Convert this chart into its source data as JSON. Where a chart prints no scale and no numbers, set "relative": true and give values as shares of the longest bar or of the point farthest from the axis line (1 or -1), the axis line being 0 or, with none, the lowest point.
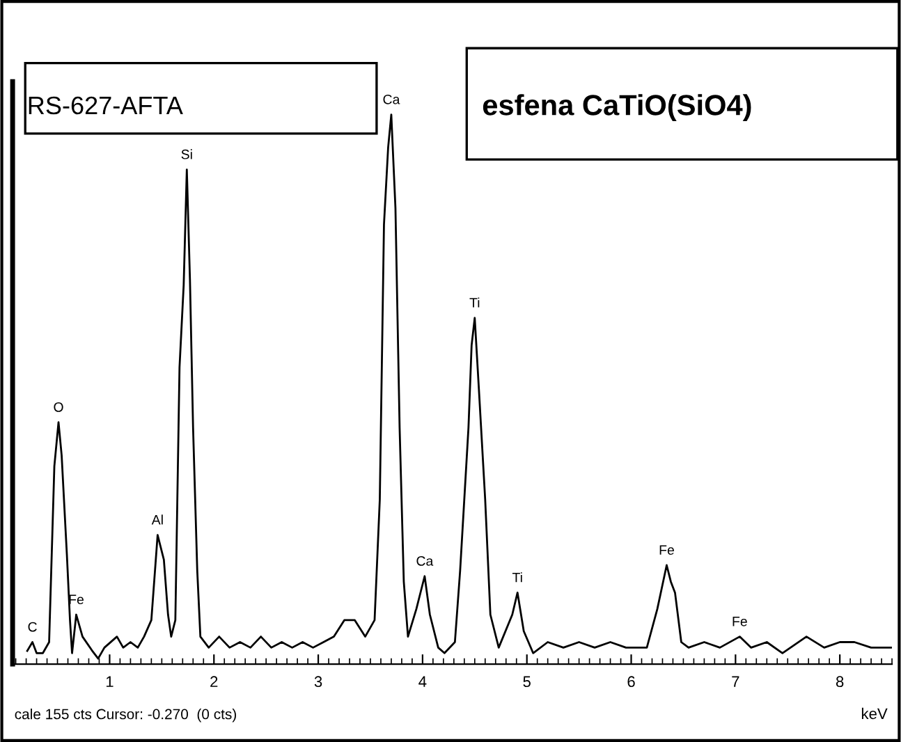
{
  "chart_data": {
    "type": "line",
    "relative": true,
    "xlabel": "keV",
    "tick_labels": "x",
    "grid": false,
    "marker": "none",
    "line_style": "solid",
    "xlim": [
      0.07,
      8.5
    ],
    "xticks": [
      1,
      2,
      3,
      4,
      5,
      6,
      7,
      8
    ],
    "series": [
      {
        "color": "#000000",
        "x": [
          0.21,
          0.26,
          0.3,
          0.36,
          0.42,
          0.47,
          0.51,
          0.54,
          0.59,
          0.62,
          0.64,
          0.68,
          0.74,
          0.83,
          0.89,
          0.95,
          1.07,
          1.13,
          1.2,
          1.27,
          1.33,
          1.4,
          1.46,
          1.52,
          1.56,
          1.59,
          1.63,
          1.67,
          1.71,
          1.74,
          1.77,
          1.8,
          1.84,
          1.87,
          1.95,
          2.05,
          2.15,
          2.25,
          2.35,
          2.45,
          2.55,
          2.65,
          2.75,
          2.85,
          2.95,
          3.05,
          3.15,
          3.25,
          3.35,
          3.45,
          3.54,
          3.59,
          3.63,
          3.67,
          3.7,
          3.74,
          3.78,
          3.82,
          3.86,
          3.94,
          4.02,
          4.07,
          4.15,
          4.21,
          4.31,
          4.36,
          4.44,
          4.47,
          4.5,
          4.54,
          4.6,
          4.65,
          4.73,
          4.86,
          4.91,
          4.97,
          5.06,
          5.2,
          5.35,
          5.5,
          5.65,
          5.8,
          5.95,
          6.15,
          6.25,
          6.34,
          6.38,
          6.42,
          6.48,
          6.55,
          6.7,
          6.85,
          7.04,
          7.15,
          7.3,
          7.45,
          7.68,
          7.85,
          8.0,
          8.14,
          8.3,
          8.49
        ],
        "values": [
          0.024,
          0.04,
          0.02,
          0.02,
          0.04,
          0.36,
          0.44,
          0.38,
          0.2,
          0.08,
          0.02,
          0.09,
          0.05,
          0.025,
          0.01,
          0.03,
          0.05,
          0.03,
          0.04,
          0.03,
          0.05,
          0.08,
          0.235,
          0.19,
          0.09,
          0.05,
          0.08,
          0.54,
          0.69,
          0.9,
          0.7,
          0.43,
          0.17,
          0.05,
          0.03,
          0.05,
          0.03,
          0.04,
          0.03,
          0.05,
          0.03,
          0.04,
          0.03,
          0.04,
          0.03,
          0.04,
          0.05,
          0.08,
          0.08,
          0.05,
          0.08,
          0.3,
          0.8,
          0.94,
          1.0,
          0.83,
          0.43,
          0.15,
          0.05,
          0.1,
          0.16,
          0.09,
          0.03,
          0.02,
          0.04,
          0.17,
          0.43,
          0.58,
          0.63,
          0.5,
          0.3,
          0.09,
          0.03,
          0.09,
          0.13,
          0.06,
          0.02,
          0.04,
          0.03,
          0.04,
          0.03,
          0.04,
          0.03,
          0.03,
          0.1,
          0.18,
          0.15,
          0.13,
          0.04,
          0.03,
          0.04,
          0.03,
          0.05,
          0.03,
          0.04,
          0.02,
          0.05,
          0.03,
          0.04,
          0.04,
          0.03,
          0.03
        ]
      }
    ],
    "annotations": [
      "RS-627-AFTA",
      "esfena CaTiO(SiO4)",
      "cale 155 cts Cursor: -0.270  (0 cts)",
      {
        "text": "C",
        "x": 0.26,
        "y": 0.04
      },
      {
        "text": "O",
        "x": 0.51,
        "y": 0.44
      },
      {
        "text": "Fe",
        "x": 0.68,
        "y": 0.09
      },
      {
        "text": "Al",
        "x": 1.46,
        "y": 0.235
      },
      {
        "text": "Si",
        "x": 1.74,
        "y": 0.9
      },
      {
        "text": "Ca",
        "x": 3.7,
        "y": 1.0
      },
      {
        "text": "Ca",
        "x": 4.02,
        "y": 0.16
      },
      {
        "text": "Ti",
        "x": 4.5,
        "y": 0.63
      },
      {
        "text": "Ti",
        "x": 4.91,
        "y": 0.13
      },
      {
        "text": "Fe",
        "x": 6.34,
        "y": 0.18
      },
      {
        "text": "Fe",
        "x": 7.04,
        "y": 0.05
      }
    ]
  }
}
